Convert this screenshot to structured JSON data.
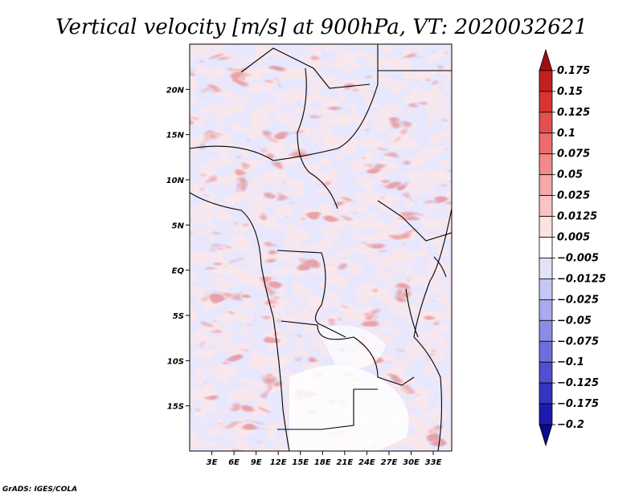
{
  "chart_data": {
    "type": "heatmap",
    "title": "Vertical velocity [m/s] at 900hPa, VT: 2020032621",
    "variable": "Vertical velocity",
    "units": "m/s",
    "level": "900hPa",
    "valid_time": "2020032621",
    "x_axis": {
      "range": [
        0,
        35.5
      ],
      "ticks": [
        3,
        6,
        9,
        12,
        15,
        18,
        21,
        24,
        27,
        30,
        33
      ],
      "tick_labels": [
        "3E",
        "6E",
        "9E",
        "12E",
        "15E",
        "18E",
        "21E",
        "24E",
        "27E",
        "30E",
        "33E"
      ]
    },
    "y_axis": {
      "range": [
        -20,
        25
      ],
      "ticks": [
        20,
        15,
        10,
        5,
        0,
        -5,
        -10,
        -15
      ],
      "tick_labels": [
        "20N",
        "15N",
        "10N",
        "5N",
        "EQ",
        "5S",
        "10S",
        "15S"
      ]
    },
    "colorbar": {
      "levels": [
        0.175,
        0.15,
        0.125,
        0.1,
        0.075,
        0.05,
        0.025,
        0.0125,
        0.005,
        -0.005,
        -0.0125,
        -0.025,
        -0.05,
        -0.075,
        -0.1,
        -0.125,
        -0.175,
        -0.2
      ],
      "labels": [
        "0.175",
        "0.15",
        "0.125",
        "0.1",
        "0.075",
        "0.05",
        "0.025",
        "0.0125",
        "0.005",
        "−0.005",
        "−0.0125",
        "−0.025",
        "−0.05",
        "−0.075",
        "−0.1",
        "−0.125",
        "−0.175",
        "−0.2"
      ],
      "colors": [
        "#a01010",
        "#c42020",
        "#d83434",
        "#e45050",
        "#ec6c6c",
        "#f28a8a",
        "#f6a8a8",
        "#fac4c4",
        "#fde2e2",
        "#ffffff",
        "#e2e2fa",
        "#c6c6f4",
        "#aaaaec",
        "#8c8ce4",
        "#6e6edc",
        "#5050d0",
        "#3434c0",
        "#1c1cac",
        "#0a0a8c"
      ]
    }
  },
  "credit": "GrADS: IGES/COLA"
}
